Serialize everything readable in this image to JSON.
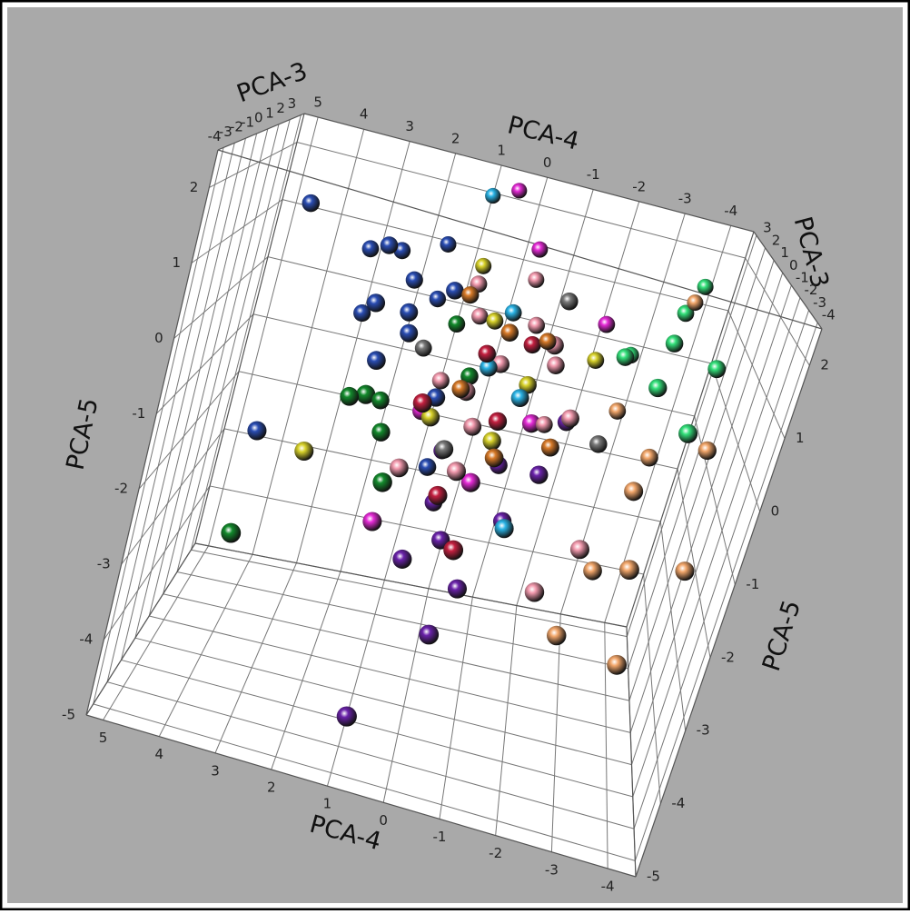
{
  "chart_data": {
    "type": "scatter3d",
    "x_label": "PCA-4",
    "y_label": "PCA-3",
    "z_label": "PCA-5",
    "xlim": [
      5.3,
      -4.5
    ],
    "ylim": [
      -4.5,
      3.3
    ],
    "zlim": [
      -5,
      2.5
    ],
    "xticks": [
      5,
      4,
      3,
      2,
      1,
      0,
      -1,
      -2,
      -3,
      -4
    ],
    "yticks": [
      -4,
      -3,
      -2,
      -1,
      0,
      1,
      2,
      3
    ],
    "zticks": [
      -5,
      -4,
      -3,
      -2,
      -1,
      0,
      1,
      2
    ],
    "grid": true,
    "series": [
      {
        "color": "#2a4db3",
        "x": [
          4.2,
          3.0,
          2.5,
          2.0,
          1.8,
          1.5,
          2.2,
          1.2,
          2.8,
          1.0,
          3.9,
          1.6,
          2.4,
          0.8,
          1.9,
          2.6
        ],
        "y": [
          0,
          1,
          -1,
          0.5,
          -0.5,
          1.5,
          -1.5,
          0,
          0.5,
          -1,
          -2,
          2,
          1,
          0,
          -0.5,
          0
        ],
        "z": [
          1.6,
          1.0,
          0.6,
          0.8,
          0.2,
          0.4,
          -0.1,
          0.9,
          0.1,
          -0.5,
          -1.4,
          1.2,
          1.1,
          -1.8,
          0.5,
          1.3
        ]
      },
      {
        "color": "#138a2c",
        "x": [
          2.2,
          1.8,
          3.8,
          2.0,
          1.5,
          1.0,
          2.5,
          0.5
        ],
        "y": [
          -2,
          -1,
          -3,
          0,
          -2.5,
          1,
          -1.5,
          0
        ],
        "z": [
          -0.5,
          -1.2,
          -2.6,
          -1.0,
          -1.5,
          0.2,
          -0.7,
          -0.3
        ]
      },
      {
        "color": "#33e07a",
        "x": [
          -3.2,
          -3.6,
          -3.0,
          -2.8,
          -3.8,
          -2.5,
          -3.4,
          -2.2
        ],
        "y": [
          1,
          2,
          0,
          -1,
          -0.5,
          1.5,
          -2,
          0
        ],
        "z": [
          1.3,
          1.6,
          1.0,
          0.5,
          0.9,
          0.3,
          0.2,
          0.6
        ]
      },
      {
        "color": "#f2a66a",
        "x": [
          -3.5,
          -4.0,
          -2.8,
          -3.2,
          -2.5,
          -3.0,
          -2.6,
          -4.1,
          -2.2,
          -3.3
        ],
        "y": [
          2,
          -1,
          -2,
          0,
          1,
          -3,
          -1.5,
          -2,
          -2.5,
          -3
        ],
        "z": [
          1.3,
          -0.2,
          -0.8,
          -0.8,
          -0.5,
          -1.6,
          -2.2,
          -1.7,
          -2.9,
          -2.9
        ]
      },
      {
        "color": "#6a22aa",
        "x": [
          0.5,
          0.2,
          -0.3,
          0.8,
          -0.8,
          0,
          1.0,
          -0.5,
          0.6,
          -1.2,
          -1.5
        ],
        "y": [
          0,
          -1,
          -2,
          -2,
          -1,
          -3,
          -3.5,
          0,
          1,
          -1,
          0
        ],
        "z": [
          -2.3,
          -2.5,
          -2.8,
          -2.6,
          -2.0,
          -3.2,
          -4.4,
          -1.5,
          -1.8,
          -1.2,
          -0.6
        ]
      },
      {
        "color": "#e52ad6",
        "x": [
          0.5,
          -0.2,
          -1.8,
          1.5,
          -0.8,
          1.2,
          0
        ],
        "y": [
          3,
          2,
          1,
          -2,
          -1,
          0,
          -2
        ],
        "z": [
          2.2,
          1.5,
          0.8,
          -2.2,
          -0.5,
          -1.0,
          -1.3
        ]
      },
      {
        "color": "#f39aae",
        "x": [
          0,
          -0.5,
          0.5,
          -1,
          1,
          0.2,
          -0.8,
          0.8,
          -1.5,
          -0.3,
          0.3,
          -1.2,
          0.6,
          1.3,
          -2.2,
          -1.6
        ],
        "y": [
          0,
          1,
          -1,
          0,
          0.5,
          -0.5,
          -1,
          1,
          -0.5,
          2,
          -2,
          1,
          1.5,
          -1.5,
          -2,
          -2.5
        ],
        "z": [
          0,
          0.5,
          -0.3,
          0.2,
          -0.6,
          -0.9,
          0.7,
          0.9,
          -0.4,
          1.0,
          -1.2,
          -1.0,
          0.3,
          -1.5,
          -1.8,
          -2.4
        ]
      },
      {
        "color": "#d8d22a",
        "x": [
          0.3,
          -0.6,
          -1.8,
          1.0,
          3.0,
          -0.2,
          0.8
        ],
        "y": [
          1,
          0,
          1,
          -1,
          -2,
          -1,
          2
        ],
        "z": [
          0.4,
          -0.2,
          0.2,
          -0.8,
          -1.5,
          -0.9,
          1.0
        ]
      },
      {
        "color": "#2ab4e6",
        "x": [
          1.0,
          0,
          -0.5,
          -0.8,
          0.2
        ],
        "y": [
          3,
          1,
          -0.5,
          -2,
          0
        ],
        "z": [
          2.0,
          0.6,
          -0.3,
          -1.8,
          -0.1
        ]
      },
      {
        "color": "#c42040",
        "x": [
          0.3,
          -0.2,
          1.2,
          0.5,
          -0.5,
          0.0
        ],
        "y": [
          0,
          -1,
          -2,
          -2,
          0.5,
          -3
        ],
        "z": [
          0.1,
          -0.6,
          -0.4,
          -1.6,
          0.3,
          -2.0
        ]
      },
      {
        "color": "#7a7a7a",
        "x": [
          1.5,
          0.6,
          -0.9,
          -2.2
        ],
        "y": [
          1,
          -1,
          0,
          0
        ],
        "z": [
          -0.3,
          -1.2,
          1.2,
          -0.8
        ]
      },
      {
        "color": "#d87a28",
        "x": [
          0,
          -0.8,
          0.6,
          -0.3,
          -1.3,
          0.9
        ],
        "y": [
          0,
          1,
          -0.5,
          -1.5,
          -0.5,
          0.5
        ],
        "z": [
          0.5,
          0.3,
          -0.4,
          -1.0,
          -0.9,
          0.8
        ]
      }
    ]
  }
}
